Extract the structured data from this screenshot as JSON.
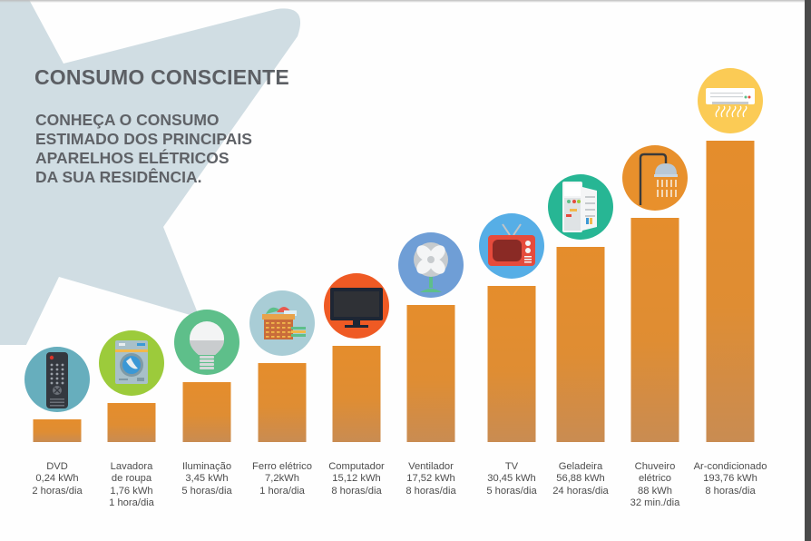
{
  "header": {
    "title": "CONSUMO CONSCIENTE",
    "subtitle": "CONHEÇA O CONSUMO\nESTIMADO DOS PRINCIPAIS\nAPARELHOS ELÉTRICOS\nDA SUA RESIDÊNCIA."
  },
  "colors": {
    "bar": "#e58d2c",
    "bar_bottom": "#c98c52",
    "title_text": "#5c5f64",
    "star": "#d0dde3"
  },
  "chart_data": {
    "type": "bar",
    "title": "CONSUMO CONSCIENTE",
    "subtitle": "CONHEÇA O CONSUMO ESTIMADO DOS PRINCIPAIS APARELHOS ELÉTRICOS DA SUA RESIDÊNCIA.",
    "xlabel": "",
    "ylabel": "",
    "unit": "kWh",
    "grid": false,
    "legend": "none",
    "categories": [
      "DVD",
      "Lavadora de roupa",
      "Iluminação",
      "Ferro elétrico",
      "Computador",
      "Ventilador",
      "TV",
      "Geladeira",
      "Chuveiro elétrico",
      "Ar-condicionado"
    ],
    "values": [
      0.24,
      1.76,
      3.45,
      7.2,
      15.12,
      17.52,
      30.45,
      56.88,
      88,
      193.76
    ],
    "items": [
      {
        "name_lines": [
          "DVD"
        ],
        "value_label": "0,24 kWh",
        "usage": "2 horas/dia",
        "icon": "remote-control-icon",
        "icon_bg": "#67aebd"
      },
      {
        "name_lines": [
          "Lavadora",
          "de roupa"
        ],
        "value_label": "1,76 kWh",
        "usage": "1 hora/dia",
        "icon": "washing-machine-icon",
        "icon_bg": "#9ccb3b"
      },
      {
        "name_lines": [
          "Iluminação"
        ],
        "value_label": "3,45 kWh",
        "usage": "5 horas/dia",
        "icon": "light-bulb-icon",
        "icon_bg": "#5ebf8a"
      },
      {
        "name_lines": [
          "Ferro elétrico"
        ],
        "value_label": "7,2kWh",
        "usage": "1 hora/dia",
        "icon": "laundry-basket-icon",
        "icon_bg": "#a9cdd6"
      },
      {
        "name_lines": [
          "Computador"
        ],
        "value_label": "15,12 kWh",
        "usage": "8 horas/dia",
        "icon": "monitor-icon",
        "icon_bg": "#ef5a24"
      },
      {
        "name_lines": [
          "Ventilador"
        ],
        "value_label": "17,52 kWh",
        "usage": "8 horas/dia",
        "icon": "fan-icon",
        "icon_bg": "#6f9ed6"
      },
      {
        "name_lines": [
          "TV"
        ],
        "value_label": "30,45 kWh",
        "usage": "5 horas/dia",
        "icon": "tv-icon",
        "icon_bg": "#56aee6"
      },
      {
        "name_lines": [
          "Geladeira"
        ],
        "value_label": "56,88 kWh",
        "usage": "24 horas/dia",
        "icon": "refrigerator-icon",
        "icon_bg": "#27b694"
      },
      {
        "name_lines": [
          "Chuveiro",
          "elétrico"
        ],
        "value_label": "88 kWh",
        "usage": "32 min./dia",
        "icon": "shower-icon",
        "icon_bg": "#e8902c"
      },
      {
        "name_lines": [
          "Ar-condicionado"
        ],
        "value_label": "193,76 kWh",
        "usage": "8 horas/dia",
        "icon": "air-conditioner-icon",
        "icon_bg": "#fbcb55"
      }
    ]
  }
}
